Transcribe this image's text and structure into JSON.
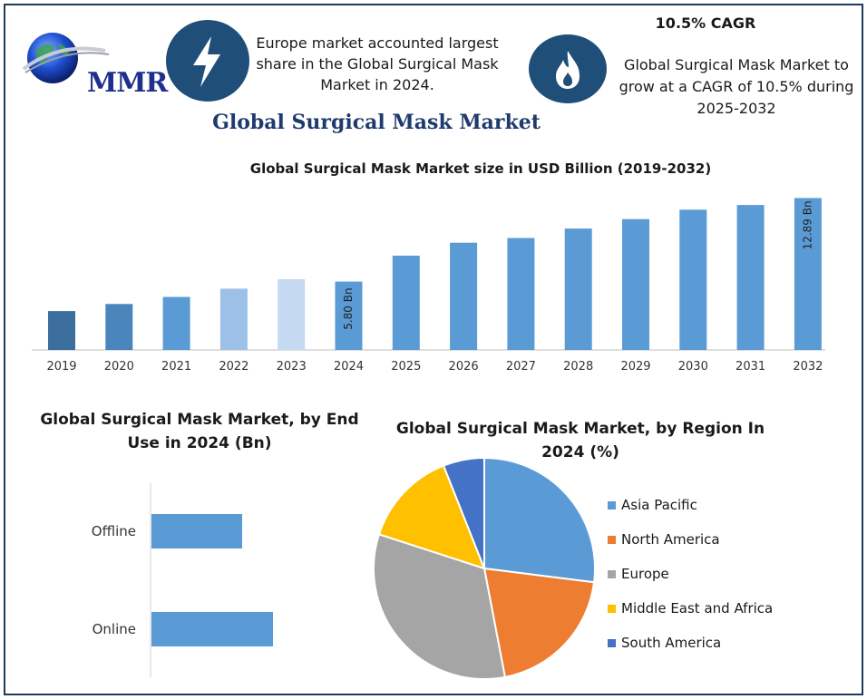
{
  "header": {
    "logo_text": "MMR",
    "note_left": "Europe market accounted largest share in the Global Surgical Mask Market in 2024.",
    "cagr_title": "10.5% CAGR",
    "note_right": "Global Surgical Mask Market to grow at a CAGR of 10.5% during 2025-2032",
    "left_icon": "lightning-icon",
    "right_icon": "flame-icon"
  },
  "main_title": "Global Surgical Mask Market",
  "colors": {
    "primary_blue": "#5b9bd5",
    "dark_blue": "#1f4e79",
    "title_navy": "#1f3b6e"
  },
  "chart_data": [
    {
      "type": "bar",
      "title": "Global Surgical Mask Market size in USD Billion (2019-2032)",
      "categories": [
        "2019",
        "2020",
        "2021",
        "2022",
        "2023",
        "2024",
        "2025",
        "2026",
        "2027",
        "2028",
        "2029",
        "2030",
        "2031",
        "2032"
      ],
      "values": [
        3.3,
        3.9,
        4.5,
        5.2,
        6.0,
        5.8,
        8.0,
        9.1,
        9.5,
        10.3,
        11.1,
        11.9,
        12.3,
        12.89
      ],
      "colors": [
        "#3d6f9e",
        "#4a86bb",
        "#5b9bd5",
        "#9dc1e6",
        "#c5d9f1",
        "#5b9bd5",
        "#5b9bd5",
        "#5b9bd5",
        "#5b9bd5",
        "#5b9bd5",
        "#5b9bd5",
        "#5b9bd5",
        "#5b9bd5",
        "#5b9bd5"
      ],
      "data_labels": {
        "2024": "5.80 Bn",
        "2032": "12.89 Bn"
      },
      "ylim": [
        0,
        14
      ]
    },
    {
      "type": "bar",
      "orientation": "horizontal",
      "title": "Global Surgical Mask Market, by End Use in 2024 (Bn)",
      "categories": [
        "Offline",
        "Online"
      ],
      "values": [
        2.5,
        3.35
      ],
      "xlim": [
        0,
        7
      ],
      "color": "#5b9bd5"
    },
    {
      "type": "pie",
      "title": "Global Surgical Mask Market, by Region In 2024 (%)",
      "labels": [
        "Asia Pacific",
        "North America",
        "Europe",
        "Middle East and Africa",
        "South America"
      ],
      "values": [
        27,
        20,
        33,
        14,
        6
      ],
      "colors": [
        "#5b9bd5",
        "#ed7d31",
        "#a5a5a5",
        "#ffc000",
        "#4472c4"
      ]
    }
  ]
}
